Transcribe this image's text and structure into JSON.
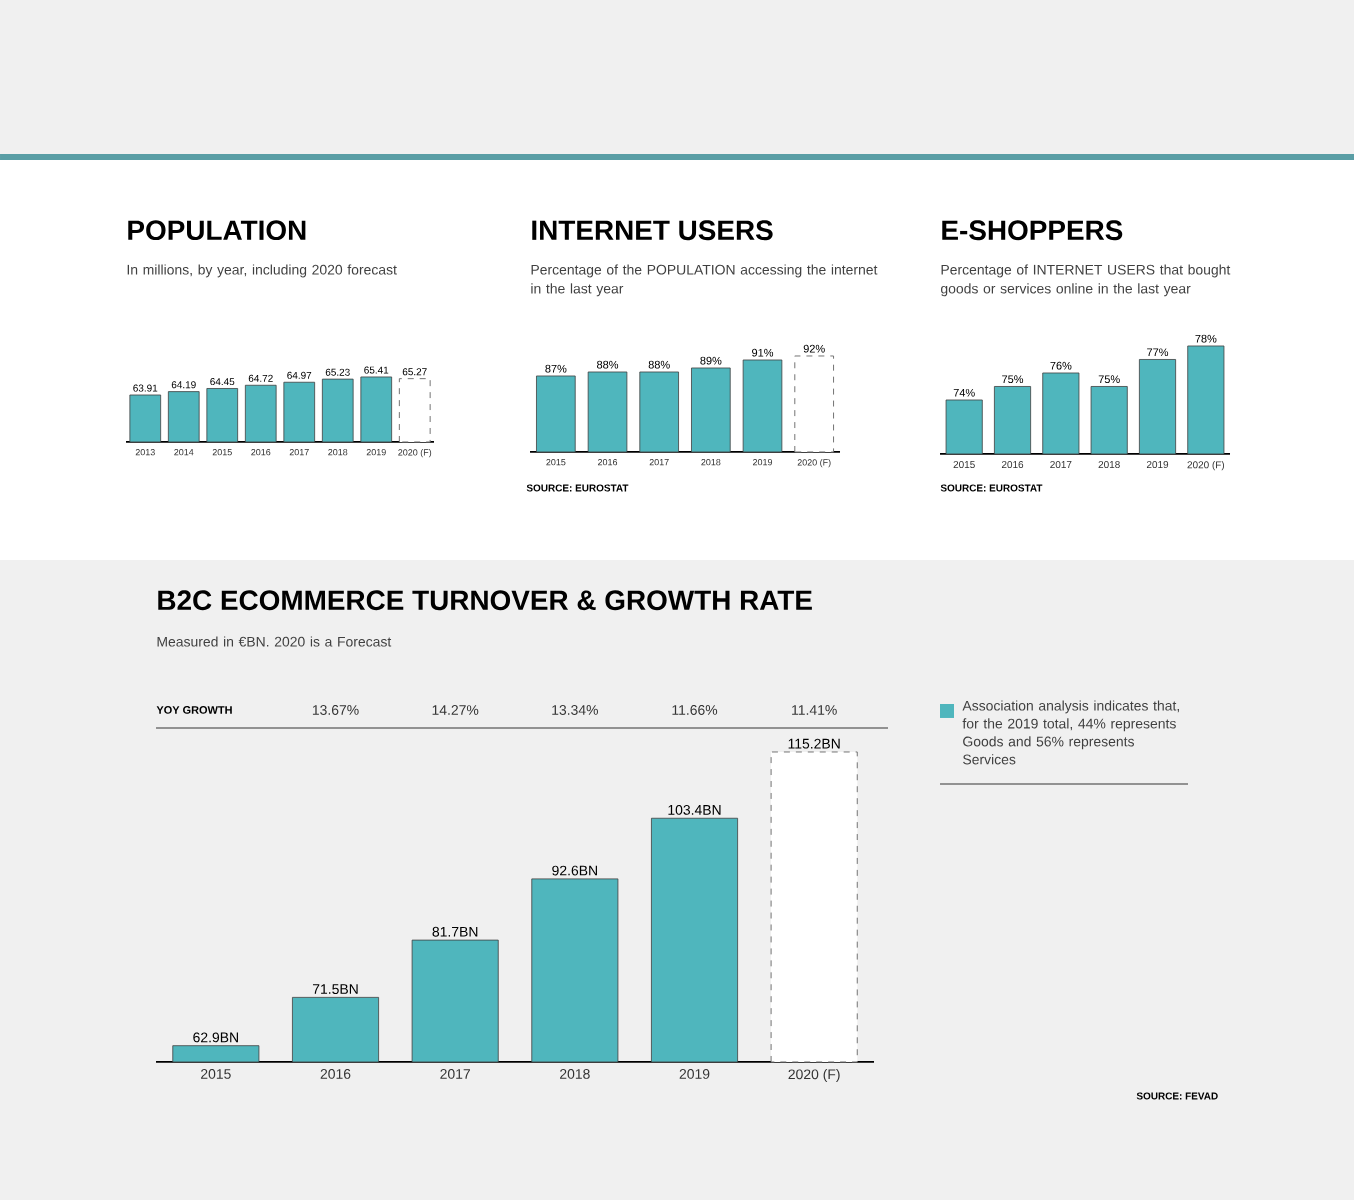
{
  "chart_data": [
    {
      "type": "bar",
      "title": "POPULATION",
      "subtitle": "In millions, by year, including 2020 forecast",
      "categories": [
        "2013",
        "2014",
        "2015",
        "2016",
        "2017",
        "2018",
        "2019",
        "2020 (F)"
      ],
      "values": [
        63.91,
        64.19,
        64.45,
        64.72,
        64.97,
        65.23,
        65.41,
        65.27
      ],
      "colors": [
        "#4fb6bd",
        "#4fb6bd",
        "#4fb6bd",
        "#4fb6bd",
        "#4fb6bd",
        "#4fb6bd",
        "#4fb6bd",
        "#ffffff"
      ],
      "data_labels": true,
      "ylim": [
        60,
        65.41
      ]
    },
    {
      "type": "bar",
      "title": "INTERNET USERS",
      "subtitle": "Percentage of the POPULATION accessing the internet in the last year",
      "categories": [
        "2015",
        "2016",
        "2017",
        "2018",
        "2019",
        "2020 (F)"
      ],
      "values": [
        87,
        88,
        88,
        89,
        91,
        92
      ],
      "value_labels": [
        "87%",
        "88%",
        "88%",
        "89%",
        "91%",
        "92%"
      ],
      "colors": [
        "#4fb6bd",
        "#4fb6bd",
        "#4fb6bd",
        "#4fb6bd",
        "#4fb6bd",
        "#ffffff"
      ],
      "ylim": [
        68,
        92
      ],
      "annotations": [
        "SOURCE: EUROSTAT"
      ]
    },
    {
      "type": "bar",
      "title": "E-SHOPPERS",
      "subtitle": "Percentage of INTERNET USERS that bought goods or services online in the last year",
      "categories": [
        "2015",
        "2016",
        "2017",
        "2018",
        "2019",
        "2020 (F)"
      ],
      "values": [
        74,
        75,
        76,
        75,
        77,
        78
      ],
      "value_labels": [
        "74%",
        "75%",
        "76%",
        "75%",
        "77%",
        "78%"
      ],
      "colors": [
        "#4fb6bd",
        "#4fb6bd",
        "#4fb6bd",
        "#4fb6bd",
        "#4fb6bd",
        "#4fb6bd"
      ],
      "ylim": [
        70,
        78
      ],
      "annotations": [
        "SOURCE: EUROSTAT"
      ]
    },
    {
      "type": "bar",
      "title": "B2C ECOMMERCE TURNOVER & GROWTH RATE",
      "subtitle": "Measured in €BN. 2020 is a Forecast",
      "categories": [
        "2015",
        "2016",
        "2017",
        "2018",
        "2019",
        "2020 (F)"
      ],
      "values": [
        62.9,
        71.5,
        81.7,
        92.6,
        103.4,
        115.2
      ],
      "value_labels": [
        "62.9BN",
        "71.5BN",
        "81.7BN",
        "92.6BN",
        "103.4BN",
        "115.2BN"
      ],
      "colors": [
        "#4fb6bd",
        "#4fb6bd",
        "#4fb6bd",
        "#4fb6bd",
        "#4fb6bd",
        "#ffffff"
      ],
      "ylim": [
        60,
        115.2
      ],
      "annotations": [
        "YOY GROWTH",
        "13.67%",
        "14.27%",
        "13.34%",
        "11.66%",
        "11.41%",
        "Association analysis indicates that, for the 2019 total, 44% represents Goods and 56% represents Services",
        "SOURCE: FEVAD"
      ]
    }
  ]
}
